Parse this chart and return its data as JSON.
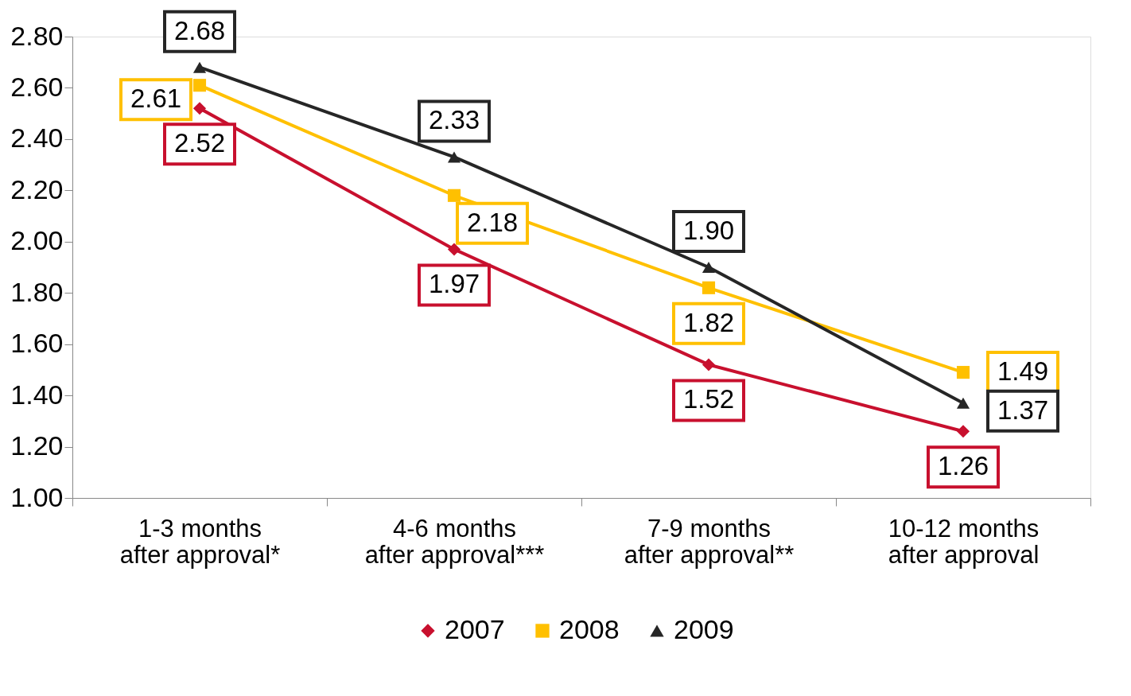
{
  "chart_data": {
    "type": "line",
    "categories": [
      "1-3 months\nafter approval*",
      "4-6 months\nafter approval***",
      "7-9 months\nafter approval**",
      "10-12 months\nafter approval"
    ],
    "series": [
      {
        "name": "2007",
        "color": "#c8102e",
        "marker": "diamond",
        "values": [
          2.52,
          1.97,
          1.52,
          1.26
        ],
        "value_labels": [
          "2.52",
          "1.97",
          "1.52",
          "1.26"
        ]
      },
      {
        "name": "2008",
        "color": "#ffc000",
        "marker": "square",
        "values": [
          2.61,
          2.18,
          1.82,
          1.49
        ],
        "value_labels": [
          "2.61",
          "2.18",
          "1.82",
          "1.49"
        ]
      },
      {
        "name": "2009",
        "color": "#262626",
        "marker": "triangle",
        "values": [
          2.68,
          2.33,
          1.9,
          1.37
        ],
        "value_labels": [
          "2.68",
          "2.33",
          "1.90",
          "1.37"
        ]
      }
    ],
    "ylim": [
      1.0,
      2.8
    ],
    "yticks": [
      {
        "value": 1.0,
        "label": "1.00"
      },
      {
        "value": 1.2,
        "label": "1.20"
      },
      {
        "value": 1.4,
        "label": "1.40"
      },
      {
        "value": 1.6,
        "label": "1.60"
      },
      {
        "value": 1.8,
        "label": "1.80"
      },
      {
        "value": 2.0,
        "label": "2.00"
      },
      {
        "value": 2.2,
        "label": "2.20"
      },
      {
        "value": 2.4,
        "label": "2.40"
      },
      {
        "value": 2.6,
        "label": "2.60"
      },
      {
        "value": 2.8,
        "label": "2.80"
      }
    ],
    "grid": false,
    "legend": "bottom"
  }
}
